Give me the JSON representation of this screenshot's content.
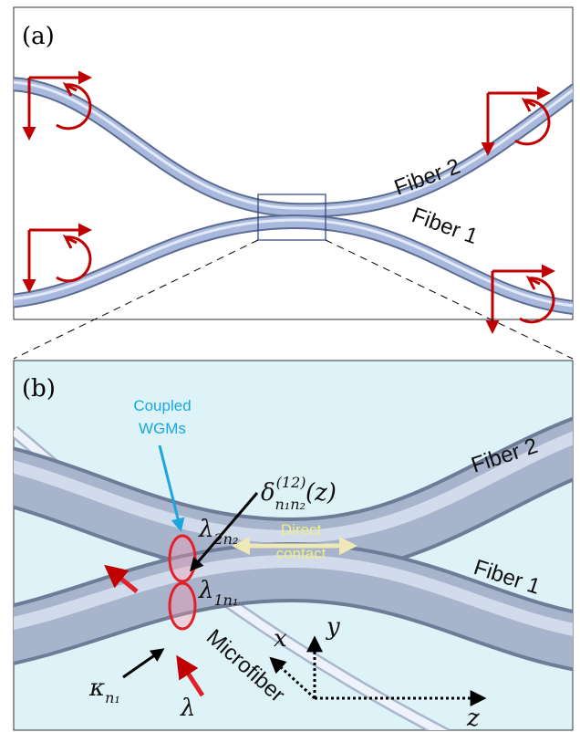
{
  "panel_a": {
    "label": "(a)",
    "fiber_2": "Fiber 2",
    "fiber_1": "Fiber 1"
  },
  "panel_b": {
    "label": "(b)",
    "coupled_wgms": [
      "Coupled",
      "WGMs"
    ],
    "fiber_2": "Fiber 2",
    "fiber_1": "Fiber 1",
    "direct_contact": [
      "Direct",
      "contact"
    ],
    "microfiber": "Microfiber",
    "delta": {
      "base": "δ",
      "sup": "(12)",
      "sub": "n₁n₂",
      "arg": "(z)"
    },
    "lambda_2": {
      "base": "λ",
      "sub": "2n₂"
    },
    "lambda_1": {
      "base": "λ",
      "sub": "1n₁"
    },
    "kappa": {
      "base": "κ",
      "sub": "n₁"
    },
    "lambda": "λ",
    "axis_x": "x",
    "axis_y": "y",
    "axis_z": "z"
  }
}
